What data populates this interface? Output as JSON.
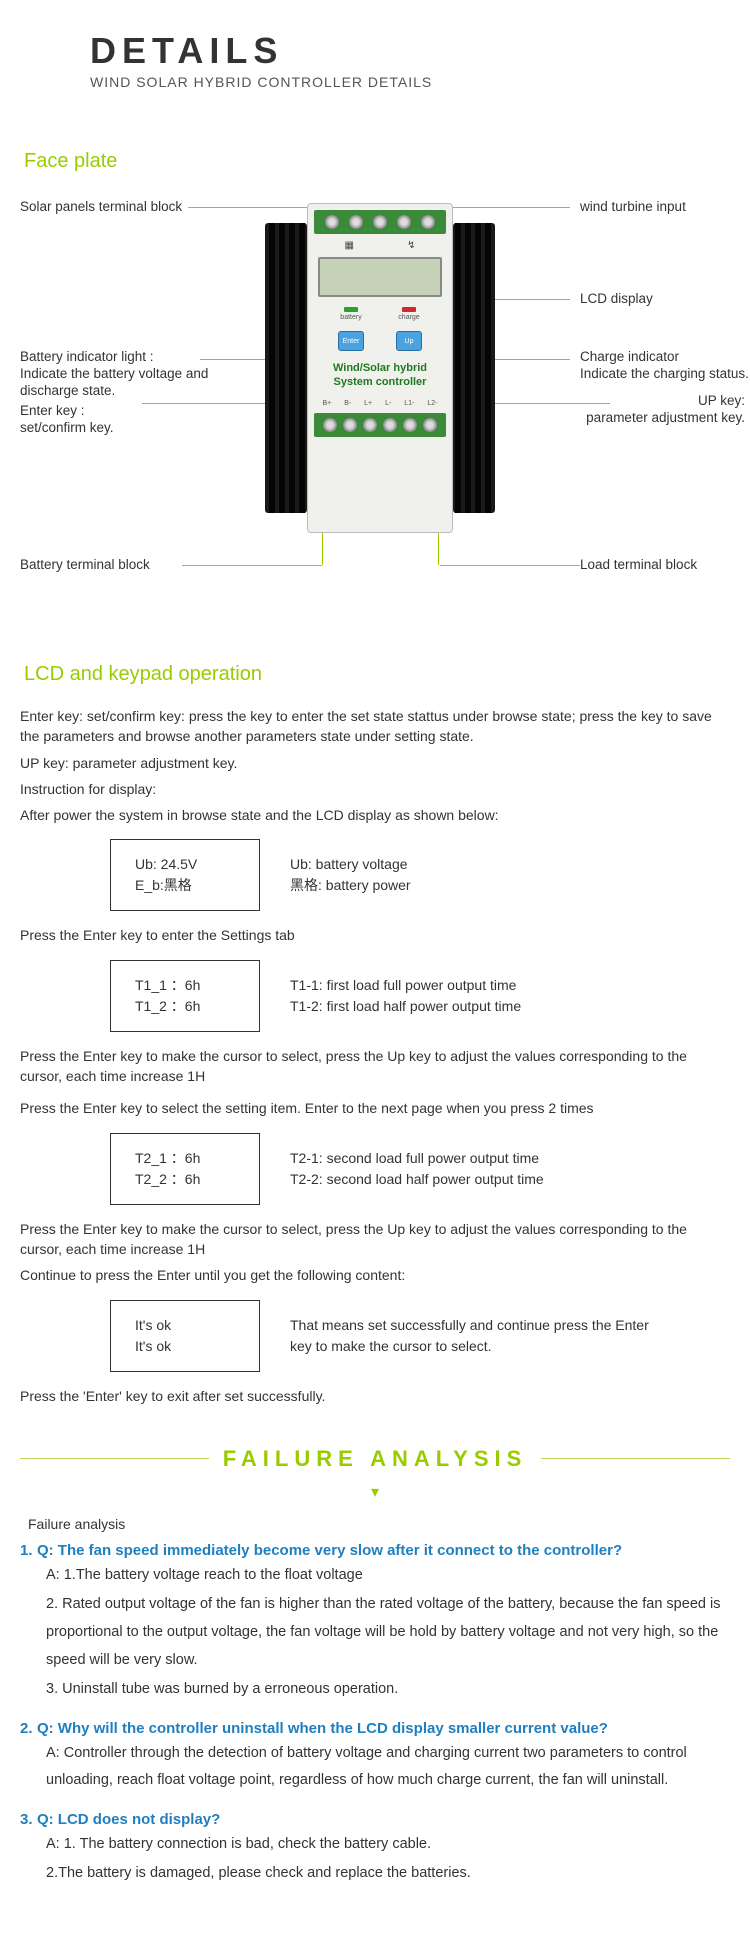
{
  "header": {
    "title": "DETAILS",
    "subtitle": "WIND SOLAR HYBRID CONTROLLER DETAILS"
  },
  "faceplate": {
    "section_title": "Face plate",
    "device_label_line1": "Wind/Solar hybrid",
    "device_label_line2": "System controller",
    "btn_enter": "Enter",
    "btn_up": "Up",
    "led_battery": "battery",
    "led_charge": "charge",
    "callouts": {
      "solar_terminal": "Solar panels terminal block",
      "wind_input": "wind turbine  input",
      "lcd": "LCD display",
      "battery_indicator": "Battery indicator light :\nIndicate the battery voltage and discharge state.",
      "charge_indicator": "Charge indicator\nIndicate the charging status.",
      "enter_key": "Enter key :\nset/confirm key.",
      "up_key": "UP key:\nparameter adjustment key.",
      "battery_terminal": "Battery terminal block",
      "load_terminal": "Load terminal block"
    }
  },
  "lcd_section": {
    "title": "LCD and keypad operation",
    "intro_lines": [
      "Enter key: set/confirm key: press the key to enter the set state stattus under browse state; press the key to save the parameters and browse another parameters state under setting state.",
      "UP key: parameter adjustment key.",
      "Instruction for display:",
      "After power the system in browse state and the LCD display as shown below:"
    ],
    "box1": {
      "l1": "Ub: 24.5V",
      "l2": "E_b:黑格"
    },
    "desc1": {
      "l1": "Ub: battery voltage",
      "l2": "黑格: battery power"
    },
    "step1": "Press the Enter key to enter the Settings tab",
    "box2": {
      "l1": "T1_1 ：6h",
      "l2": "T1_2 ：6h"
    },
    "desc2": {
      "l1": "T1-1: first load full power output time",
      "l2": "T1-2: first load half power output time"
    },
    "step2": "Press the Enter key to make the cursor to select, press the Up key to adjust the values corresponding to the cursor, each time increase 1H",
    "step3": "Press the Enter key to select the setting item. Enter to the next page when you press 2 times",
    "box3": {
      "l1": "T2_1 ：6h",
      "l2": "T2_2 ：6h"
    },
    "desc3": {
      "l1": "T2-1: second load full power output time",
      "l2": "T2-2: second load half power output time"
    },
    "step4": "Press the Enter key to make the cursor to select, press the Up key to adjust the values corresponding to the cursor, each time increase 1H",
    "step5": "Continue to press the Enter until you get the following content:",
    "box4": {
      "l1": "It's ok",
      "l2": "It's ok"
    },
    "desc4": "That means set successfully and continue press the Enter key to make the cursor to select.",
    "step6": "Press the 'Enter' key to exit after set successfully."
  },
  "failure": {
    "banner": "FAILURE ANALYSIS",
    "subtitle": "Failure analysis",
    "items": [
      {
        "n": "1.",
        "q": "Q: The fan speed immediately become very slow after it connect to the controller?",
        "a_lead": "A: 1.The battery voltage reach to the float voltage",
        "subs": [
          "2. Rated output voltage of the fan is higher than the rated voltage of the battery, because the fan speed is proportional to the output voltage, the fan voltage will be hold by battery voltage and not very high, so the speed will be very slow.",
          "3. Uninstall tube was burned by a erroneous operation."
        ]
      },
      {
        "n": "2.",
        "q": "Q: Why will the controller uninstall when the LCD display smaller current value?",
        "a_lead": "A: Controller through the detection of battery voltage and charging current two parameters to control unloading, reach float voltage point, regardless of how much charge current, the fan will uninstall.",
        "subs": []
      },
      {
        "n": "3.",
        "q": "Q: LCD does not display?",
        "a_lead": "A: 1. The battery connection is bad, check the battery cable.",
        "subs": [
          "2.The battery is damaged, please check and replace the batteries."
        ]
      }
    ]
  },
  "colors": {
    "accent": "#99CC00",
    "link_blue": "#1f7fbf"
  }
}
